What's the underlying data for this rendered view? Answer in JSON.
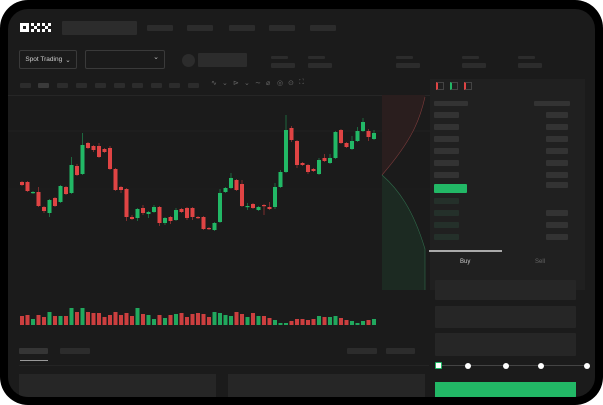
{
  "header": {
    "logo": "OKX"
  },
  "market_selector": {
    "label": "Spot Trading",
    "chevron": "chevron-down-icon"
  },
  "pair_dropdown": {
    "chevron": "chevron-down-icon"
  },
  "trade_tabs": {
    "buy": "Buy",
    "sell": "Sell"
  },
  "colors": {
    "up": "#22b866",
    "down": "#e04444",
    "accent": "#22b866",
    "background": "#1b1b1b"
  },
  "slider": {
    "value_percent": 0,
    "stops": [
      0,
      25,
      50,
      75,
      100
    ]
  },
  "chart_data": {
    "type": "candlestick",
    "candles_ohlc": [
      [
        58,
        59,
        54,
        55
      ],
      [
        58,
        59,
        48,
        49
      ],
      [
        47,
        49,
        46,
        48
      ],
      [
        48,
        53,
        33,
        34
      ],
      [
        33,
        34,
        27,
        29
      ],
      [
        27,
        41,
        23,
        40
      ],
      [
        42,
        43,
        33,
        34
      ],
      [
        38,
        55,
        37,
        54
      ],
      [
        53,
        54,
        45,
        46
      ],
      [
        47,
        83,
        46,
        75
      ],
      [
        74,
        76,
        64,
        65
      ],
      [
        66,
        107,
        65,
        95
      ],
      [
        97,
        98,
        91,
        92
      ],
      [
        94,
        95,
        88,
        90
      ],
      [
        94,
        97,
        82,
        83
      ],
      [
        91,
        92,
        87,
        88
      ],
      [
        92,
        94,
        70,
        71
      ],
      [
        71,
        72,
        49,
        50
      ],
      [
        53,
        54,
        47,
        50
      ],
      [
        51,
        52,
        19,
        23
      ],
      [
        23,
        25,
        20,
        21
      ],
      [
        22,
        32,
        19,
        31
      ],
      [
        32,
        35,
        25,
        27
      ],
      [
        26,
        29,
        22,
        28
      ],
      [
        28,
        35,
        27,
        33
      ],
      [
        33,
        34,
        14,
        17
      ],
      [
        17,
        23,
        15,
        22
      ],
      [
        23,
        24,
        16,
        19
      ],
      [
        20,
        32,
        19,
        30
      ],
      [
        31,
        32,
        27,
        28
      ],
      [
        32,
        33,
        20,
        22
      ],
      [
        32,
        33,
        20,
        23
      ],
      [
        23,
        24,
        21,
        22
      ],
      [
        23,
        24,
        10,
        11
      ],
      [
        12,
        13,
        10,
        11
      ],
      [
        10,
        18,
        9,
        17
      ],
      [
        18,
        51,
        17,
        47
      ],
      [
        48,
        53,
        47,
        52
      ],
      [
        52,
        67,
        51,
        62
      ],
      [
        60,
        61,
        49,
        50
      ],
      [
        56,
        60,
        33,
        34
      ],
      [
        33,
        37,
        30,
        34
      ],
      [
        36,
        37,
        31,
        32
      ],
      [
        30,
        34,
        29,
        33
      ],
      [
        35,
        36,
        25,
        34
      ],
      [
        33,
        38,
        30,
        31
      ],
      [
        33,
        57,
        31,
        53
      ],
      [
        53,
        70,
        52,
        68
      ],
      [
        68,
        125,
        67,
        110
      ],
      [
        112,
        114,
        98,
        100
      ],
      [
        99,
        100,
        72,
        75
      ],
      [
        77,
        78,
        74,
        75
      ],
      [
        75,
        76,
        66,
        68
      ],
      [
        71,
        72,
        68,
        69
      ],
      [
        66,
        82,
        65,
        80
      ],
      [
        82,
        86,
        78,
        79
      ],
      [
        77,
        86,
        76,
        82
      ],
      [
        82,
        109,
        81,
        108
      ],
      [
        110,
        111,
        96,
        97
      ],
      [
        97,
        98,
        92,
        93
      ],
      [
        91,
        104,
        90,
        99
      ],
      [
        99,
        113,
        98,
        109
      ],
      [
        109,
        122,
        108,
        118
      ],
      [
        109,
        111,
        99,
        103
      ],
      [
        101,
        110,
        100,
        107
      ]
    ],
    "volumes": [
      9,
      10,
      6,
      10,
      8,
      13,
      9,
      9,
      9,
      17,
      13,
      17,
      13,
      12,
      12,
      8,
      10,
      13,
      10,
      12,
      9,
      17,
      11,
      10,
      6,
      10,
      7,
      10,
      11,
      12,
      8,
      11,
      12,
      11,
      8,
      13,
      12,
      10,
      9,
      13,
      11,
      8,
      12,
      9,
      9,
      7,
      5,
      2,
      2,
      4,
      6,
      6,
      5,
      6,
      9,
      8,
      8,
      9,
      7,
      5,
      4,
      2,
      4,
      5,
      6
    ],
    "depth": {
      "asks": "upper-left red area",
      "bids": "lower-left green area"
    }
  }
}
